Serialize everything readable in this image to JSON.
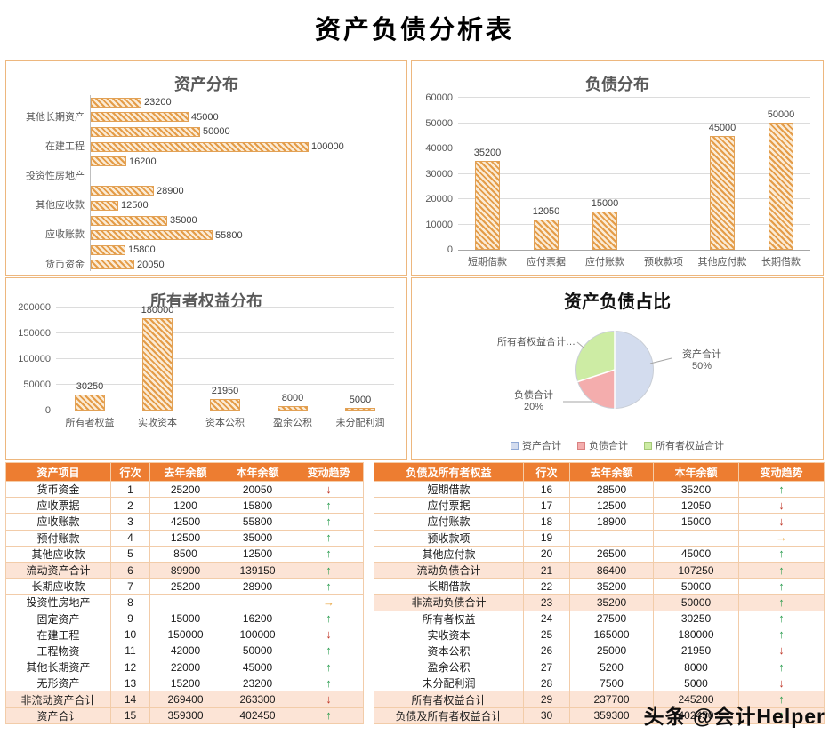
{
  "page_title": "资产负债分析表",
  "watermark": "头条 @会计Helper",
  "colors": {
    "header_bg": "#ED7D31",
    "subtotal_bg": "#FCE4D6",
    "bar_stripe": "#E49C48",
    "bar_border": "#E2A155",
    "panel_border": "#EDB77E",
    "trend_up": "#2E9E52",
    "trend_down": "#C03A2B",
    "trend_flat": "#E8A33B"
  },
  "chart_data": [
    {
      "name": "asset-distribution",
      "type": "bar",
      "orientation": "horizontal",
      "title": "资产分布",
      "categories": [
        "无形资产",
        "其他长期资产",
        "工程物资",
        "在建工程",
        "固定资产",
        "投资性房地产",
        "长期应收款",
        "其他应收款",
        "预付账款",
        "应收账款",
        "应收票据",
        "货币资金"
      ],
      "values": [
        23200,
        45000,
        50000,
        100000,
        16200,
        null,
        28900,
        12500,
        35000,
        55800,
        15800,
        20050
      ],
      "visible_axis_labels": [
        "其他长期资产",
        "在建工程",
        "投资性房地产",
        "其他应收款",
        "应收账款",
        "货币资金"
      ],
      "xlim": [
        0,
        100000
      ],
      "data_labels": true,
      "grid": false
    },
    {
      "name": "liability-distribution",
      "type": "bar",
      "orientation": "vertical",
      "title": "负债分布",
      "categories": [
        "短期借款",
        "应付票据",
        "应付账款",
        "预收款项",
        "其他应付款",
        "长期借款"
      ],
      "values": [
        35200,
        12050,
        15000,
        null,
        45000,
        50000
      ],
      "ylim": [
        0,
        60000
      ],
      "yticks": [
        0,
        10000,
        20000,
        30000,
        40000,
        50000,
        60000
      ],
      "data_labels": true,
      "grid": true
    },
    {
      "name": "owner-equity-distribution",
      "type": "bar",
      "orientation": "vertical",
      "title": "所有者权益分布",
      "categories": [
        "所有者权益",
        "实收资本",
        "资本公积",
        "盈余公积",
        "未分配利润"
      ],
      "values": [
        30250,
        180000,
        21950,
        8000,
        5000
      ],
      "ylim": [
        0,
        200000
      ],
      "yticks": [
        0,
        50000,
        100000,
        150000,
        200000
      ],
      "data_labels": true,
      "grid": true
    },
    {
      "name": "asset-liability-ratio",
      "type": "pie",
      "title": "资产负债占比",
      "slices": [
        {
          "label": "资产合计",
          "pct": 50,
          "color": "#D3DCEE",
          "border": "#8FA8D4"
        },
        {
          "label": "负债合计",
          "pct": 20,
          "color": "#F4ADAD",
          "border": "#D98080"
        },
        {
          "label": "所有者权益合计",
          "pct": 30,
          "color": "#CDECA4",
          "border": "#A4C878"
        }
      ],
      "callouts": {
        "equity_label": "所有者权益合计…",
        "asset_label": "资产合计",
        "asset_pct": "50%",
        "liability_label": "负债合计",
        "liability_pct": "20%"
      },
      "legend": [
        "资产合计",
        "负债合计",
        "所有者权益合计"
      ],
      "legend_position": "bottom"
    }
  ],
  "asset_table": {
    "headers": [
      "资产项目",
      "行次",
      "去年余额",
      "本年余额",
      "变动趋势"
    ],
    "rows": [
      {
        "item": "货币资金",
        "line": "1",
        "prev": "25200",
        "curr": "20050",
        "trend": "down",
        "subtotal": false
      },
      {
        "item": "应收票据",
        "line": "2",
        "prev": "1200",
        "curr": "15800",
        "trend": "up",
        "subtotal": false
      },
      {
        "item": "应收账款",
        "line": "3",
        "prev": "42500",
        "curr": "55800",
        "trend": "up",
        "subtotal": false
      },
      {
        "item": "预付账款",
        "line": "4",
        "prev": "12500",
        "curr": "35000",
        "trend": "up",
        "subtotal": false
      },
      {
        "item": "其他应收款",
        "line": "5",
        "prev": "8500",
        "curr": "12500",
        "trend": "up",
        "subtotal": false
      },
      {
        "item": "流动资产合计",
        "line": "6",
        "prev": "89900",
        "curr": "139150",
        "trend": "up",
        "subtotal": true
      },
      {
        "item": "长期应收款",
        "line": "7",
        "prev": "25200",
        "curr": "28900",
        "trend": "up",
        "subtotal": false
      },
      {
        "item": "投资性房地产",
        "line": "8",
        "prev": "",
        "curr": "",
        "trend": "flat",
        "subtotal": false
      },
      {
        "item": "固定资产",
        "line": "9",
        "prev": "15000",
        "curr": "16200",
        "trend": "up",
        "subtotal": false
      },
      {
        "item": "在建工程",
        "line": "10",
        "prev": "150000",
        "curr": "100000",
        "trend": "down",
        "subtotal": false
      },
      {
        "item": "工程物资",
        "line": "11",
        "prev": "42000",
        "curr": "50000",
        "trend": "up",
        "subtotal": false
      },
      {
        "item": "其他长期资产",
        "line": "12",
        "prev": "22000",
        "curr": "45000",
        "trend": "up",
        "subtotal": false
      },
      {
        "item": "无形资产",
        "line": "13",
        "prev": "15200",
        "curr": "23200",
        "trend": "up",
        "subtotal": false
      },
      {
        "item": "非流动资产合计",
        "line": "14",
        "prev": "269400",
        "curr": "263300",
        "trend": "down",
        "subtotal": true
      },
      {
        "item": "资产合计",
        "line": "15",
        "prev": "359300",
        "curr": "402450",
        "trend": "up",
        "subtotal": true
      }
    ]
  },
  "liability_table": {
    "headers": [
      "负债及所有者权益",
      "行次",
      "去年余额",
      "本年余额",
      "变动趋势"
    ],
    "rows": [
      {
        "item": "短期借款",
        "line": "16",
        "prev": "28500",
        "curr": "35200",
        "trend": "up",
        "subtotal": false
      },
      {
        "item": "应付票据",
        "line": "17",
        "prev": "12500",
        "curr": "12050",
        "trend": "down",
        "subtotal": false
      },
      {
        "item": "应付账款",
        "line": "18",
        "prev": "18900",
        "curr": "15000",
        "trend": "down",
        "subtotal": false
      },
      {
        "item": "预收款项",
        "line": "19",
        "prev": "",
        "curr": "",
        "trend": "flat",
        "subtotal": false
      },
      {
        "item": "其他应付款",
        "line": "20",
        "prev": "26500",
        "curr": "45000",
        "trend": "up",
        "subtotal": false
      },
      {
        "item": "流动负债合计",
        "line": "21",
        "prev": "86400",
        "curr": "107250",
        "trend": "up",
        "subtotal": true
      },
      {
        "item": "长期借款",
        "line": "22",
        "prev": "35200",
        "curr": "50000",
        "trend": "up",
        "subtotal": false
      },
      {
        "item": "非流动负债合计",
        "line": "23",
        "prev": "35200",
        "curr": "50000",
        "trend": "up",
        "subtotal": true
      },
      {
        "item": "所有者权益",
        "line": "24",
        "prev": "27500",
        "curr": "30250",
        "trend": "up",
        "subtotal": false
      },
      {
        "item": "实收资本",
        "line": "25",
        "prev": "165000",
        "curr": "180000",
        "trend": "up",
        "subtotal": false
      },
      {
        "item": "资本公积",
        "line": "26",
        "prev": "25000",
        "curr": "21950",
        "trend": "down",
        "subtotal": false
      },
      {
        "item": "盈余公积",
        "line": "27",
        "prev": "5200",
        "curr": "8000",
        "trend": "up",
        "subtotal": false
      },
      {
        "item": "未分配利润",
        "line": "28",
        "prev": "7500",
        "curr": "5000",
        "trend": "down",
        "subtotal": false
      },
      {
        "item": "所有者权益合计",
        "line": "29",
        "prev": "237700",
        "curr": "245200",
        "trend": "up",
        "subtotal": true
      },
      {
        "item": "负债及所有者权益合计",
        "line": "30",
        "prev": "359300",
        "curr": "402450",
        "trend": "up",
        "subtotal": true
      }
    ]
  }
}
